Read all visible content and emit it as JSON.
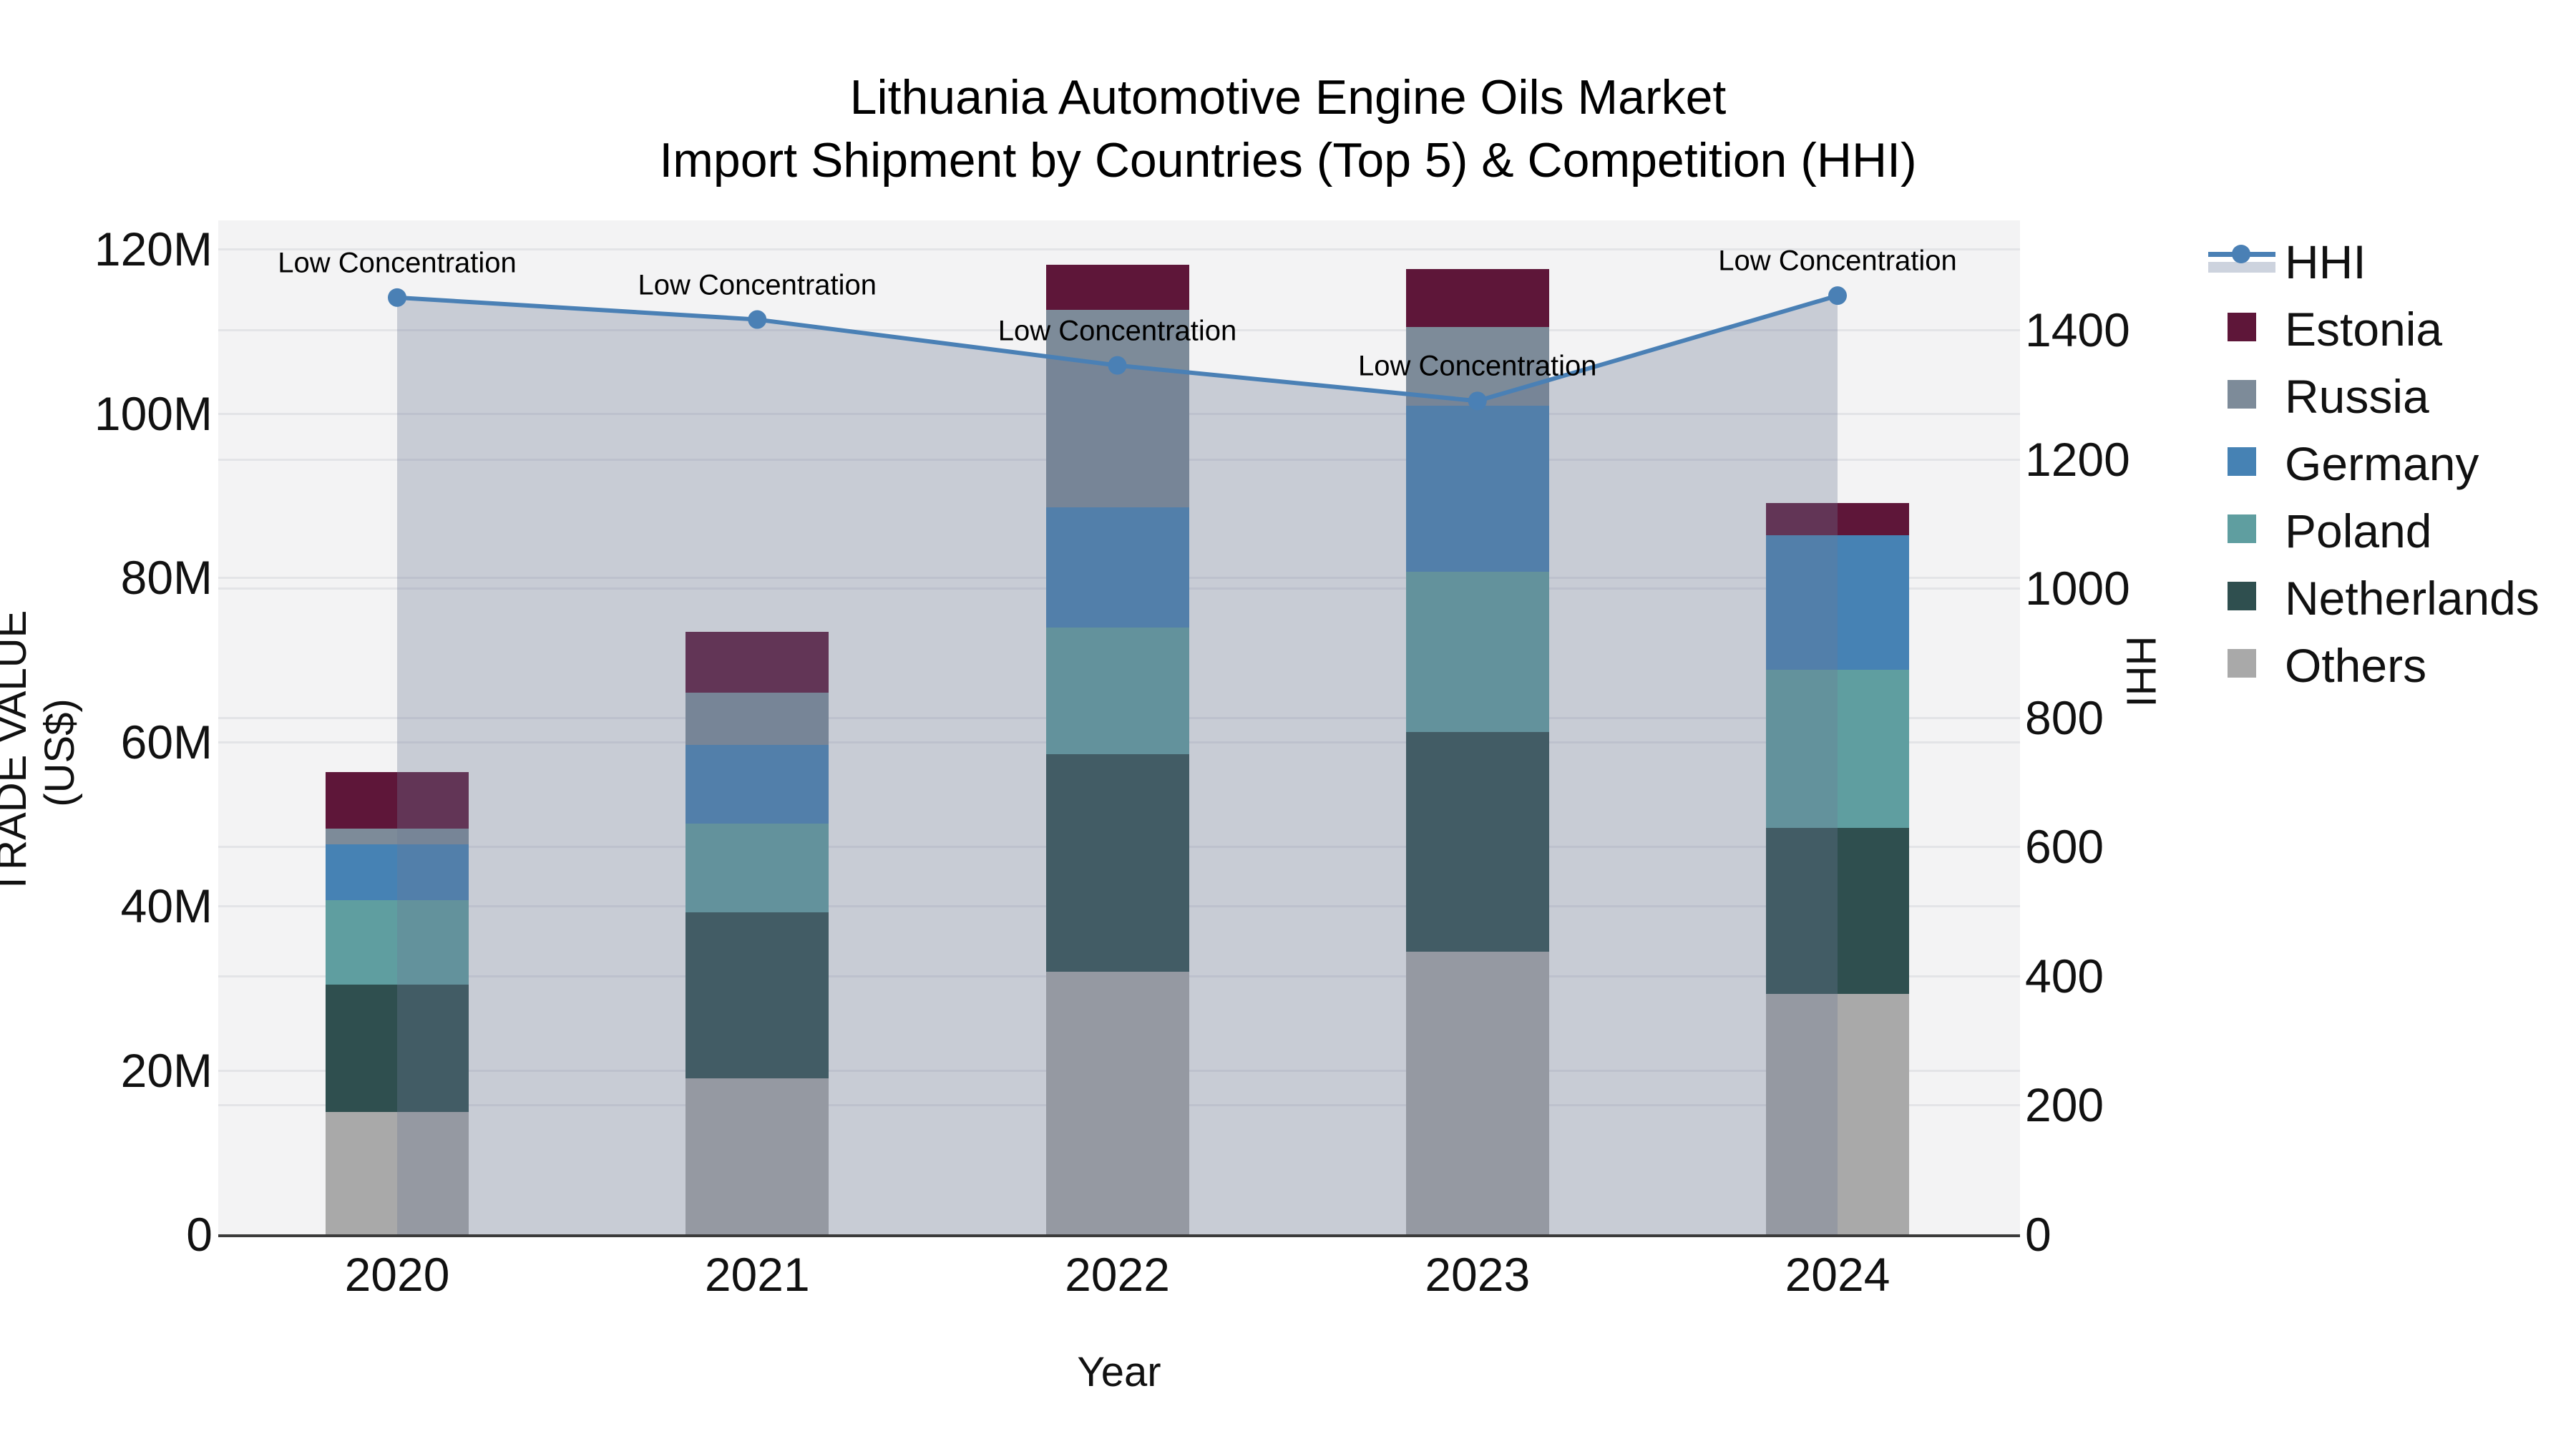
{
  "title": {
    "line1": "Lithuania Automotive Engine Oils Market",
    "line2": "Import Shipment by Countries (Top 5) & Competition (HHI)"
  },
  "axes": {
    "y_left": {
      "title": "TRADE VALUE (US$)",
      "tick_labels": [
        "0",
        "20M",
        "40M",
        "60M",
        "80M",
        "100M",
        "120M"
      ],
      "tick_values_millions": [
        0,
        20,
        40,
        60,
        80,
        100,
        120
      ],
      "range_millions": [
        0,
        123.5
      ],
      "grid": true
    },
    "y_right": {
      "title": "HHI",
      "tick_labels": [
        "0",
        "200",
        "400",
        "600",
        "800",
        "1000",
        "1200",
        "1400"
      ],
      "tick_values": [
        0,
        200,
        400,
        600,
        800,
        1000,
        1200,
        1400
      ],
      "range": [
        0,
        1570
      ],
      "grid": true
    },
    "x": {
      "title": "Year",
      "tick_labels": [
        "2020",
        "2021",
        "2022",
        "2023",
        "2024"
      ]
    }
  },
  "legend": {
    "position": "right",
    "items": [
      {
        "label": "HHI",
        "type": "line",
        "color": "#4A80B5",
        "band_color": "#CDD3DE"
      },
      {
        "label": "Estonia",
        "type": "square",
        "color": "#5E1639"
      },
      {
        "label": "Russia",
        "type": "square",
        "color": "#7D8B99"
      },
      {
        "label": "Germany",
        "type": "square",
        "color": "#4682B4"
      },
      {
        "label": "Poland",
        "type": "square",
        "color": "#5F9EA0"
      },
      {
        "label": "Netherlands",
        "type": "square",
        "color": "#2F4F4F"
      },
      {
        "label": "Others",
        "type": "square",
        "color": "#A9A9A9"
      }
    ]
  },
  "chart_data": {
    "type": "bar",
    "subtype": "stacked-bars-with-line-overlay",
    "categories": [
      "2020",
      "2021",
      "2022",
      "2023",
      "2024"
    ],
    "series": [
      {
        "name": "Others",
        "color": "#A9A9A9",
        "axis": "left",
        "values": [
          14.9,
          19.0,
          32.0,
          34.4,
          29.3
        ]
      },
      {
        "name": "Netherlands",
        "color": "#2F4F4F",
        "axis": "left",
        "values": [
          15.5,
          20.2,
          26.5,
          26.8,
          20.2
        ]
      },
      {
        "name": "Poland",
        "color": "#5F9EA0",
        "axis": "left",
        "values": [
          10.3,
          10.8,
          15.4,
          19.5,
          19.3
        ]
      },
      {
        "name": "Germany",
        "color": "#4682B4",
        "axis": "left",
        "values": [
          6.8,
          9.6,
          14.6,
          20.2,
          16.3
        ]
      },
      {
        "name": "Russia",
        "color": "#7D8B99",
        "axis": "left",
        "values": [
          1.9,
          6.4,
          24.1,
          9.6,
          0.0
        ]
      },
      {
        "name": "Estonia",
        "color": "#5E1639",
        "axis": "left",
        "values": [
          6.9,
          7.4,
          5.5,
          7.1,
          4.0
        ]
      }
    ],
    "stack_order_note": "bars stacked bottom-to-top: Others, Netherlands, Poland, Germany, Russia, Estonia; values in millions US$",
    "bar_totals_millions": [
      56.3,
      73.4,
      118.1,
      117.6,
      89.1
    ],
    "line_series": {
      "name": "HHI",
      "axis": "right",
      "color": "#4A80B5",
      "area_fill_color": "rgba(110,122,148,0.32)",
      "values": [
        1450,
        1416,
        1345,
        1290,
        1453
      ]
    },
    "annotations": [
      {
        "x": "2020",
        "text": "Low Concentration"
      },
      {
        "x": "2021",
        "text": "Low Concentration"
      },
      {
        "x": "2022",
        "text": "Low Concentration"
      },
      {
        "x": "2023",
        "text": "Low Concentration"
      },
      {
        "x": "2024",
        "text": "Low Concentration"
      }
    ],
    "title": "Lithuania Automotive Engine Oils Market — Import Shipment by Countries (Top 5) & Competition (HHI)",
    "xlabel": "Year",
    "ylabel_left": "TRADE VALUE (US$)",
    "ylabel_right": "HHI",
    "legend_position": "right",
    "grid": true
  },
  "colors": {
    "plot_background": "#F3F3F4",
    "page_background": "#FFFFFF",
    "gridline": "#E3E4E7",
    "axis_line": "#3B3B3B",
    "text": "#111111"
  }
}
